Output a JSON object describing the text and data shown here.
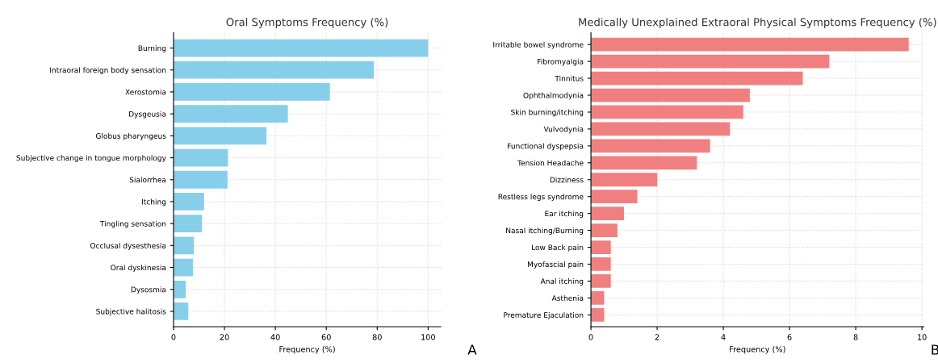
{
  "chart_data": [
    {
      "type": "bar",
      "orientation": "horizontal",
      "title": "Oral Symptoms Frequency (%)",
      "xlabel": "Frequency (%)",
      "categories": [
        "Burning",
        "Intraoral foreign body sensation",
        "Xerostomia",
        "Dysgeusia",
        "Globus pharyngeus",
        "Subjective change in tongue morphology",
        "Sialorrhea",
        "Itching",
        "Tingling sensation",
        "Occlusal dysesthesia",
        "Oral dyskinesia",
        "Dysosmia",
        "Subjective halitosis"
      ],
      "values": [
        100,
        78.7,
        61.4,
        44.9,
        36.5,
        21.4,
        21.2,
        12.0,
        11.2,
        8.0,
        7.6,
        4.8,
        5.8
      ],
      "color": "#87ceeb",
      "xlim": [
        0,
        105
      ],
      "xticks": [
        0,
        20,
        40,
        60,
        80,
        100
      ],
      "grid": true,
      "annotations": [
        "A"
      ]
    },
    {
      "type": "bar",
      "orientation": "horizontal",
      "title": "Medically Unexplained Extraoral Physical Symptoms Frequency (%)",
      "xlabel": "Frequency (%)",
      "categories": [
        "Irritable bowel syndrome",
        "Fibromyalgia",
        "Tinnitus",
        "Ophthalmodynia",
        "Skin burning/itching",
        "Vulvodynia",
        "Functional dyspepsia",
        "Tension Headache",
        "Dizziness",
        "Restless legs syndrome",
        "Ear itching",
        "Nasal itching/Burning",
        "Low Back pain",
        "Myofascial pain",
        "Anal itching",
        "Asthenia",
        "Premature Ejaculation"
      ],
      "values": [
        9.6,
        7.2,
        6.4,
        4.8,
        4.6,
        4.2,
        3.6,
        3.2,
        2.0,
        1.4,
        1.0,
        0.8,
        0.6,
        0.6,
        0.6,
        0.4,
        0.4
      ],
      "color": "#f08080",
      "xlim": [
        0,
        10.06
      ],
      "xticks": [
        0,
        2,
        4,
        6,
        8,
        10
      ],
      "grid": true,
      "annotations": [
        "B"
      ]
    }
  ]
}
